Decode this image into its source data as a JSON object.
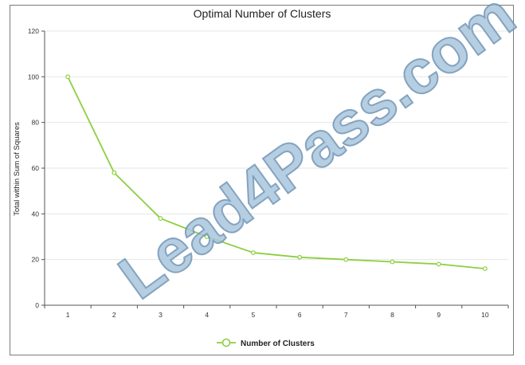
{
  "chart_data": {
    "type": "line",
    "title": "Optimal Number of Clusters",
    "xlabel": "",
    "ylabel": "Total within Sum of Squares",
    "x": [
      1,
      2,
      3,
      4,
      5,
      6,
      7,
      8,
      9,
      10
    ],
    "series": [
      {
        "name": "Number of Clusters",
        "values": [
          100,
          58,
          38,
          30,
          23,
          21,
          20,
          19,
          18,
          16
        ],
        "color": "#8ccf3e"
      }
    ],
    "xlim": [
      0.5,
      10.5
    ],
    "ylim": [
      0,
      120
    ],
    "yticks": [
      0,
      20,
      40,
      60,
      80,
      100,
      120
    ],
    "grid": true,
    "legend_position": "bottom"
  },
  "watermark": {
    "text": "Lead4Pass.com"
  }
}
